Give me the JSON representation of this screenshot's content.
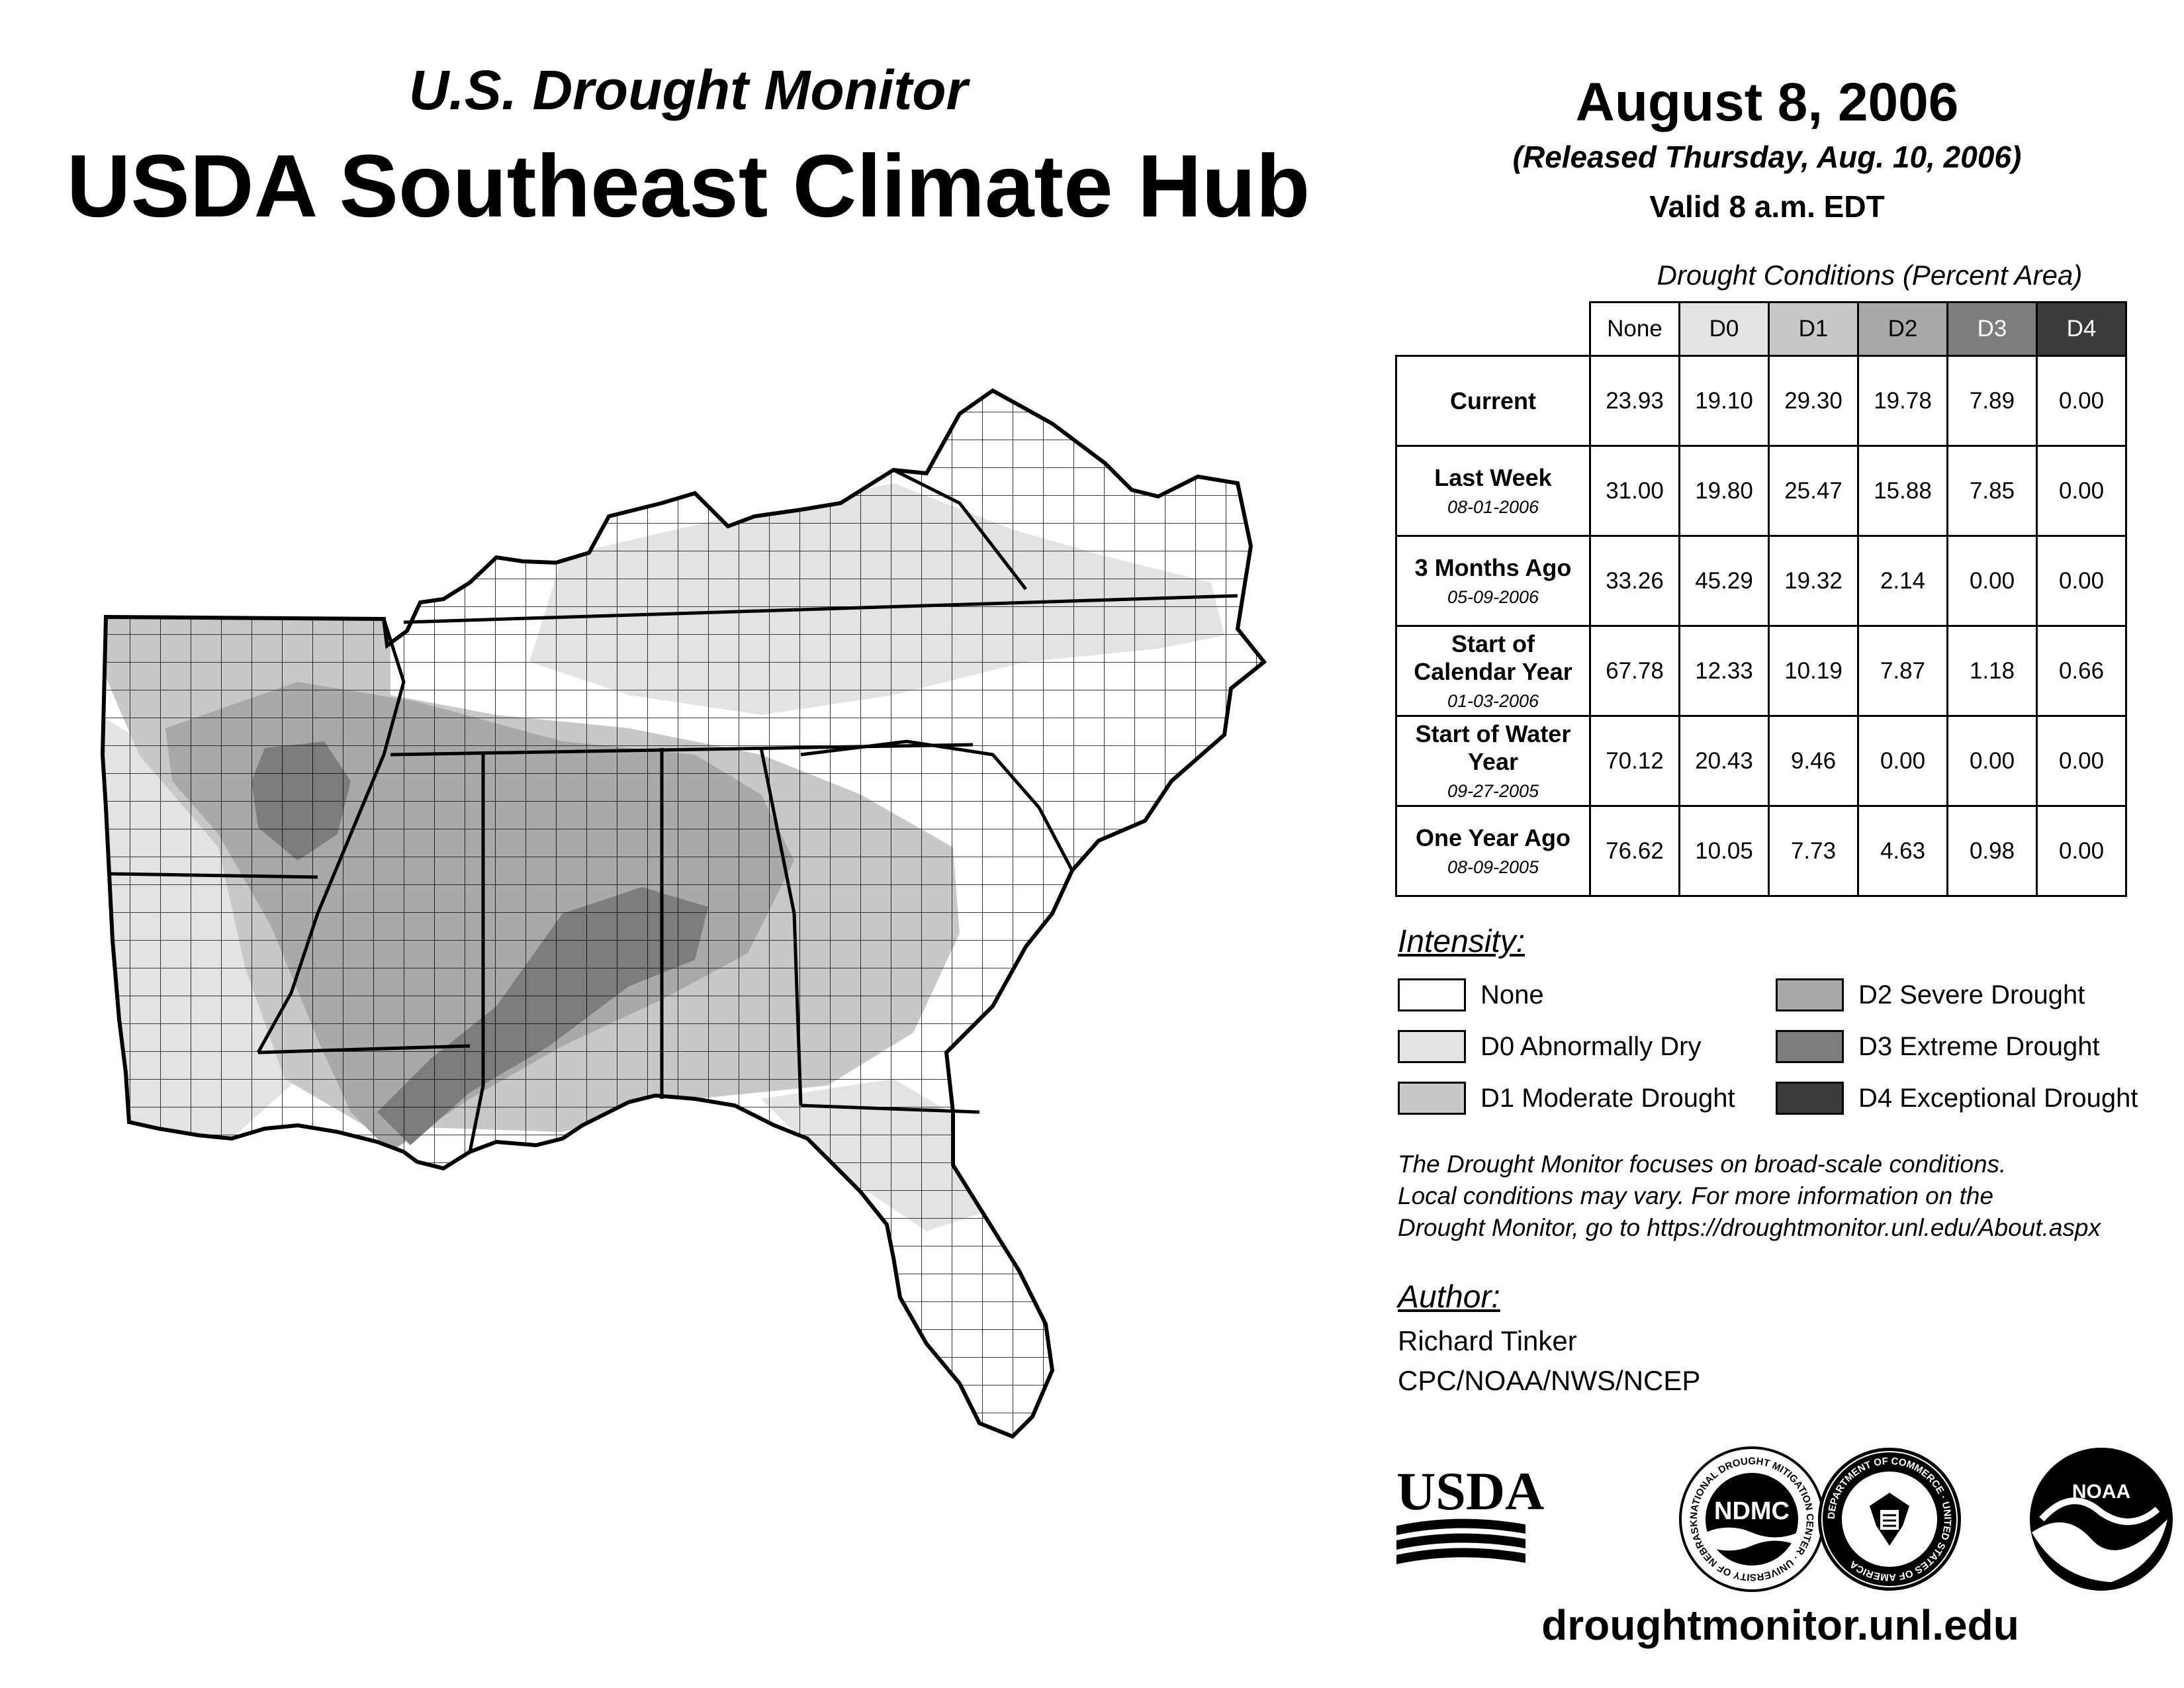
{
  "header": {
    "subtitle": "U.S. Drought Monitor",
    "title": "USDA Southeast Climate Hub"
  },
  "date_block": {
    "date": "August 8, 2006",
    "released": "(Released Thursday, Aug. 10, 2006)",
    "valid": "Valid 8 a.m. EDT"
  },
  "table": {
    "caption": "Drought Conditions (Percent Area)",
    "columns": [
      "None",
      "D0",
      "D1",
      "D2",
      "D3",
      "D4"
    ],
    "rows": [
      {
        "label": "Current",
        "date": "",
        "values": [
          "23.93",
          "19.10",
          "29.30",
          "19.78",
          "7.89",
          "0.00"
        ]
      },
      {
        "label": "Last Week",
        "date": "08-01-2006",
        "values": [
          "31.00",
          "19.80",
          "25.47",
          "15.88",
          "7.85",
          "0.00"
        ]
      },
      {
        "label": "3 Months Ago",
        "date": "05-09-2006",
        "values": [
          "33.26",
          "45.29",
          "19.32",
          "2.14",
          "0.00",
          "0.00"
        ]
      },
      {
        "label": "Start of Calendar Year",
        "date": "01-03-2006",
        "values": [
          "67.78",
          "12.33",
          "10.19",
          "7.87",
          "1.18",
          "0.66"
        ]
      },
      {
        "label": "Start of Water Year",
        "date": "09-27-2005",
        "values": [
          "70.12",
          "20.43",
          "9.46",
          "0.00",
          "0.00",
          "0.00"
        ]
      },
      {
        "label": "One Year Ago",
        "date": "08-09-2005",
        "values": [
          "76.62",
          "10.05",
          "7.73",
          "4.63",
          "0.98",
          "0.00"
        ]
      }
    ]
  },
  "legend": {
    "heading": "Intensity:",
    "items": [
      {
        "label": "None",
        "color": "#ffffff"
      },
      {
        "label": "D0 Abnormally Dry",
        "color": "#e3e3e3"
      },
      {
        "label": "D1 Moderate Drought",
        "color": "#c8c8c8"
      },
      {
        "label": "D2 Severe Drought",
        "color": "#a9a9a9"
      },
      {
        "label": "D3 Extreme Drought",
        "color": "#7d7d7d"
      },
      {
        "label": "D4 Exceptional Drought",
        "color": "#3c3c3c"
      }
    ]
  },
  "note": {
    "line1": "The Drought Monitor focuses on broad-scale conditions.",
    "line2": "Local conditions may vary. For more information on the",
    "line3": "Drought Monitor, go to https://droughtmonitor.unl.edu/About.aspx"
  },
  "author": {
    "heading": "Author:",
    "name": "Richard Tinker",
    "org": "CPC/NOAA/NWS/NCEP"
  },
  "logos": {
    "usda": "USDA",
    "ndmc": "NDMC",
    "noaa": "NOAA",
    "ndmc_ring": "NATIONAL DROUGHT MITIGATION CENTER · UNIVERSITY OF NEBRASKA",
    "commerce_ring": "DEPARTMENT OF COMMERCE · UNITED STATES OF AMERICA"
  },
  "footer": {
    "url": "droughtmonitor.unl.edu"
  }
}
